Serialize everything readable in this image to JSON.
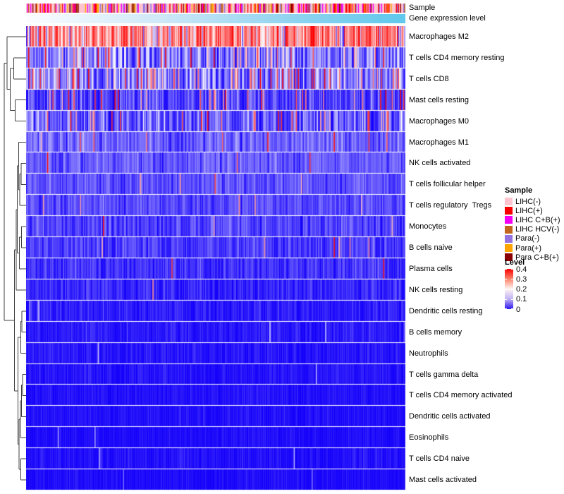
{
  "figure": {
    "annotation_rows": [
      {
        "label": "Sample"
      },
      {
        "label": "Gene expression level"
      }
    ],
    "legend": {
      "sample_title": "Sample",
      "sample_entries": [
        {
          "label": "LIHC(-)",
          "color": "#FFC4CE"
        },
        {
          "label": "LIHC(+)",
          "color": "#F80000"
        },
        {
          "label": "LIHC C+B(+)",
          "color": "#F400F4"
        },
        {
          "label": "LIHC HCV(-)",
          "color": "#C2661E"
        },
        {
          "label": "Para(-)",
          "color": "#9473E0"
        },
        {
          "label": "Para(+)",
          "color": "#FFA400"
        },
        {
          "label": "Para C+B(+)",
          "color": "#8B0000"
        }
      ],
      "level_title": "Level",
      "level_ticks": [
        "0.4",
        "0.3",
        "0.2",
        "0.1",
        "0"
      ]
    }
  },
  "chart_data": {
    "type": "heatmap",
    "title": "",
    "x_axis": "samples (unlabeled columns)",
    "n_columns_estimate": 360,
    "rows": [
      {
        "label": "Macrophages M2",
        "mean": 0.3,
        "sd": 0.08,
        "p_red": 0.0,
        "p_low": 0.05
      },
      {
        "label": "T cells CD4 memory resting",
        "mean": 0.1,
        "sd": 0.05,
        "p_red": 0.08,
        "p_low": 0.08
      },
      {
        "label": "T cells CD8",
        "mean": 0.1,
        "sd": 0.05,
        "p_red": 0.13,
        "p_low": 0.06
      },
      {
        "label": "Mast cells resting",
        "mean": 0.055,
        "sd": 0.035,
        "p_red": 0.06,
        "p_low": 0.12
      },
      {
        "label": "Macrophages M0",
        "mean": 0.075,
        "sd": 0.045,
        "p_red": 0.08,
        "p_low": 0.08
      },
      {
        "label": "Macrophages M1",
        "mean": 0.075,
        "sd": 0.025,
        "p_red": 0.02,
        "p_low": 0.04
      },
      {
        "label": "NK cells activated",
        "mean": 0.068,
        "sd": 0.022,
        "p_red": 0.012,
        "p_low": 0.04
      },
      {
        "label": "T cells follicular helper",
        "mean": 0.062,
        "sd": 0.022,
        "p_red": 0.012,
        "p_low": 0.05
      },
      {
        "label": "T cells regulatory  Tregs",
        "mean": 0.055,
        "sd": 0.02,
        "p_red": 0.015,
        "p_low": 0.05
      },
      {
        "label": "Monocytes",
        "mean": 0.048,
        "sd": 0.025,
        "p_red": 0.01,
        "p_low": 0.08
      },
      {
        "label": "B cells naive",
        "mean": 0.042,
        "sd": 0.024,
        "p_red": 0.012,
        "p_low": 0.08
      },
      {
        "label": "Plasma cells",
        "mean": 0.038,
        "sd": 0.022,
        "p_red": 0.01,
        "p_low": 0.1
      },
      {
        "label": "NK cells resting",
        "mean": 0.028,
        "sd": 0.02,
        "p_red": 0.008,
        "p_low": 0.1
      },
      {
        "label": "Dendritic cells resting",
        "mean": 0.018,
        "sd": 0.014,
        "p_red": 0.006,
        "p_low": 0.0
      },
      {
        "label": "B cells memory",
        "mean": 0.015,
        "sd": 0.013,
        "p_red": 0.008,
        "p_low": 0.0
      },
      {
        "label": "Neutrophils",
        "mean": 0.013,
        "sd": 0.012,
        "p_red": 0.006,
        "p_low": 0.0
      },
      {
        "label": "T cells gamma delta",
        "mean": 0.011,
        "sd": 0.011,
        "p_red": 0.005,
        "p_low": 0.0
      },
      {
        "label": "T cells CD4 memory activated",
        "mean": 0.009,
        "sd": 0.009,
        "p_red": 0.004,
        "p_low": 0.0
      },
      {
        "label": "Dendritic cells activated",
        "mean": 0.008,
        "sd": 0.009,
        "p_red": 0.004,
        "p_low": 0.0
      },
      {
        "label": "Eosinophils",
        "mean": 0.006,
        "sd": 0.007,
        "p_red": 0.004,
        "p_low": 0.0
      },
      {
        "label": "T cells CD4 naive",
        "mean": 0.008,
        "sd": 0.011,
        "p_red": 0.006,
        "p_low": 0.0
      },
      {
        "label": "Mast cells activated",
        "mean": 0.005,
        "sd": 0.008,
        "p_red": 0.004,
        "p_low": 0.0
      }
    ],
    "colorscale": {
      "ticks": [
        0.4,
        0.3,
        0.2,
        0.1,
        0
      ],
      "min": 0,
      "white_point": 0.19,
      "max": 0.42,
      "low_color": "#1400FA",
      "mid_color": "#FFFFFF",
      "high_color": "#FC0000"
    },
    "top_annotations": [
      {
        "name": "Sample",
        "categories": [
          {
            "label": "LIHC(-)",
            "color": "#FFC4CE",
            "approx_fraction": 0.41
          },
          {
            "label": "LIHC(+)",
            "color": "#F80000",
            "approx_fraction": 0.17
          },
          {
            "label": "LIHC C+B(+)",
            "color": "#F400F4",
            "approx_fraction": 0.17
          },
          {
            "label": "LIHC HCV(-)",
            "color": "#C2661E",
            "approx_fraction": 0.05
          },
          {
            "label": "Para(-)",
            "color": "#9473E0",
            "approx_fraction": 0.09
          },
          {
            "label": "Para(+)",
            "color": "#FFA400",
            "approx_fraction": 0.07
          },
          {
            "label": "Para C+B(+)",
            "color": "#8B0000",
            "approx_fraction": 0.04
          }
        ]
      },
      {
        "name": "Gene expression level",
        "gradient_left_color": "#FBFDFF",
        "gradient_right_color": "#5FC8EC"
      }
    ],
    "dendrogram_linkage": [
      [
        1,
        2,
        0.55
      ],
      [
        3,
        4,
        0.48
      ],
      [
        22,
        23,
        0.72
      ],
      [
        0,
        24,
        0.86
      ],
      [
        6,
        7,
        0.207
      ],
      [
        26,
        8,
        0.259
      ],
      [
        5,
        27,
        0.31
      ],
      [
        9,
        10,
        0.19
      ],
      [
        29,
        11,
        0.276
      ],
      [
        28,
        30,
        0.379
      ],
      [
        31,
        12,
        0.43
      ],
      [
        13,
        14,
        0.172
      ],
      [
        33,
        15,
        0.224
      ],
      [
        16,
        17,
        0.138
      ],
      [
        35,
        18,
        0.19
      ],
      [
        36,
        19,
        0.241
      ],
      [
        20,
        21,
        0.224
      ],
      [
        37,
        38,
        0.293
      ],
      [
        34,
        39,
        0.345
      ],
      [
        32,
        40,
        0.517
      ],
      [
        25,
        41,
        1.0
      ]
    ]
  }
}
